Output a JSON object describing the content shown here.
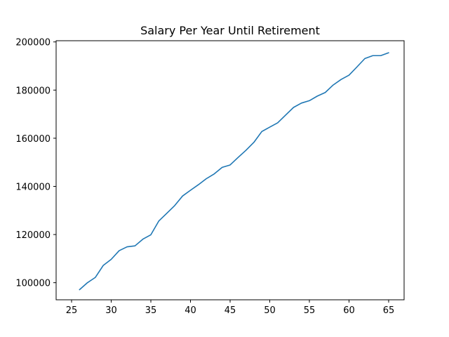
{
  "chart_data": {
    "type": "line",
    "title": "Salary Per Year Until Retirement",
    "xlabel": "",
    "ylabel": "",
    "xlim": [
      23.05,
      66.95
    ],
    "ylim": [
      92900,
      200500
    ],
    "xticks": [
      25,
      30,
      35,
      40,
      45,
      50,
      55,
      60,
      65
    ],
    "yticks": [
      100000,
      120000,
      140000,
      160000,
      180000,
      200000
    ],
    "grid": false,
    "colors": {
      "line": "#1f77b4",
      "axes": "#000000"
    },
    "series": [
      {
        "x": [
          26,
          27,
          28,
          29,
          30,
          31,
          32,
          33,
          34,
          35,
          36,
          37,
          38,
          39,
          40,
          41,
          42,
          43,
          44,
          45,
          46,
          47,
          48,
          49,
          50,
          51,
          52,
          53,
          54,
          55,
          56,
          57,
          58,
          59,
          60,
          61,
          62,
          63,
          64,
          65
        ],
        "values": [
          97100,
          100000,
          102200,
          107200,
          109700,
          113300,
          114900,
          115300,
          118100,
          119900,
          125600,
          128800,
          132000,
          136000,
          138400,
          140700,
          143200,
          145200,
          147900,
          148900,
          152000,
          155000,
          158300,
          162800,
          164600,
          166400,
          169600,
          172800,
          174600,
          175600,
          177500,
          179000,
          182100,
          184400,
          186200,
          189600,
          193100,
          194300,
          194300,
          195500
        ]
      }
    ]
  }
}
